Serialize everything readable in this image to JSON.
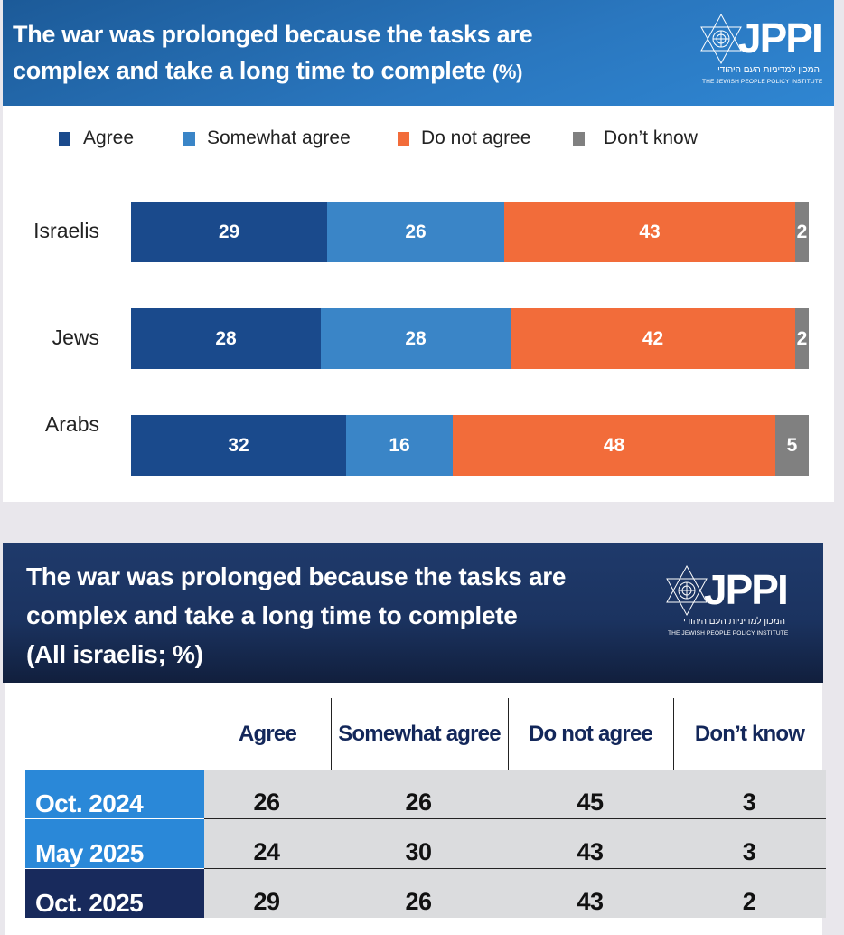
{
  "top_panel": {
    "title_main": "The war was prolonged because the tasks are complex and take a long time to complete",
    "title_line1": "The war was prolonged because the tasks are",
    "title_line2": "complex and take a long time to complete",
    "title_unit": "(%)",
    "logo": {
      "name": "JPPI",
      "hebrew": "המכון למדיניות העם היהודי",
      "english": "THE JEWISH PEOPLE POLICY INSTITUTE",
      "icon": "star-of-david-icon"
    }
  },
  "bottom_panel": {
    "title_line1": "The war was prolonged because the tasks are",
    "title_line2": "complex and take a long time to complete",
    "title_line3": "(All israelis; %)",
    "logo": {
      "name": "JPPI",
      "hebrew": "המכון למדיניות העם היהודי",
      "english": "THE JEWISH PEOPLE POLICY INSTITUTE",
      "icon": "star-of-david-icon"
    }
  },
  "colors": {
    "agree": "#1a4a8c",
    "somewhat_agree": "#3a85c7",
    "do_not_agree": "#f26c3a",
    "dont_know": "#808080",
    "row_light": "#2a88d8",
    "row_dark": "#182a5c"
  },
  "chart_data": [
    {
      "type": "bar",
      "orientation": "horizontal",
      "stacked": true,
      "title": "The war was prolonged because the tasks are complex and take a long time to complete (%)",
      "legend_position": "top",
      "legend": [
        "Agree",
        "Somewhat agree",
        "Do not agree",
        "Don’t know"
      ],
      "categories": [
        "Israelis",
        "Jews",
        "Arabs"
      ],
      "series": [
        {
          "name": "Agree",
          "color": "#1a4a8c",
          "values": [
            29,
            28,
            32
          ]
        },
        {
          "name": "Somewhat agree",
          "color": "#3a85c7",
          "values": [
            26,
            28,
            16
          ]
        },
        {
          "name": "Do not agree",
          "color": "#f26c3a",
          "values": [
            43,
            42,
            48
          ]
        },
        {
          "name": "Don’t know",
          "color": "#808080",
          "values": [
            2,
            2,
            5
          ]
        }
      ],
      "xlabel": "",
      "ylabel": "",
      "grid": false
    },
    {
      "type": "table",
      "title": "The war was prolonged because the tasks are complex and take a long time to complete (All israelis; %)",
      "columns": [
        "Agree",
        "Somewhat agree",
        "Do not agree",
        "Don’t know"
      ],
      "rows": [
        {
          "label": "Oct. 2024",
          "values": [
            26,
            26,
            45,
            3
          ]
        },
        {
          "label": "May 2025",
          "values": [
            24,
            30,
            43,
            3
          ]
        },
        {
          "label": "Oct. 2025",
          "values": [
            29,
            26,
            43,
            2
          ]
        }
      ]
    }
  ]
}
